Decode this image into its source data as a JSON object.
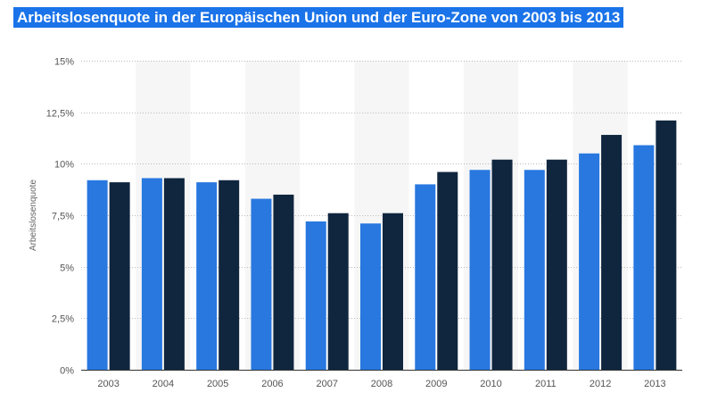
{
  "title": "Arbeitslosenquote in der Europäischen Union und der Euro-Zone von 2003 bis 2013",
  "colors": {
    "title_bg": "#1a73e8",
    "series_light": "#2878e0",
    "series_dark": "#10263f",
    "band": "#f6f6f6",
    "grid": "#bbbbbb"
  },
  "chart_data": {
    "type": "bar",
    "categories": [
      "2003",
      "2004",
      "2005",
      "2006",
      "2007",
      "2008",
      "2009",
      "2010",
      "2011",
      "2012",
      "2013"
    ],
    "series": [
      {
        "values": [
          9.2,
          9.3,
          9.1,
          8.3,
          7.2,
          7.1,
          9.0,
          9.7,
          9.7,
          10.5,
          10.9
        ]
      },
      {
        "values": [
          9.1,
          9.3,
          9.2,
          8.5,
          7.6,
          7.6,
          9.6,
          10.2,
          10.2,
          11.4,
          12.1
        ]
      }
    ],
    "ylabel": "Arbeitslosenquote",
    "ylim": [
      0,
      15
    ],
    "yticks": [
      {
        "value": 0,
        "label": "0%"
      },
      {
        "value": 2.5,
        "label": "2,5%"
      },
      {
        "value": 5,
        "label": "5%"
      },
      {
        "value": 7.5,
        "label": "7,5%"
      },
      {
        "value": 10,
        "label": "10%"
      },
      {
        "value": 12.5,
        "label": "12,5%"
      },
      {
        "value": 15,
        "label": "15%"
      }
    ],
    "grid": true,
    "legend": "none"
  }
}
